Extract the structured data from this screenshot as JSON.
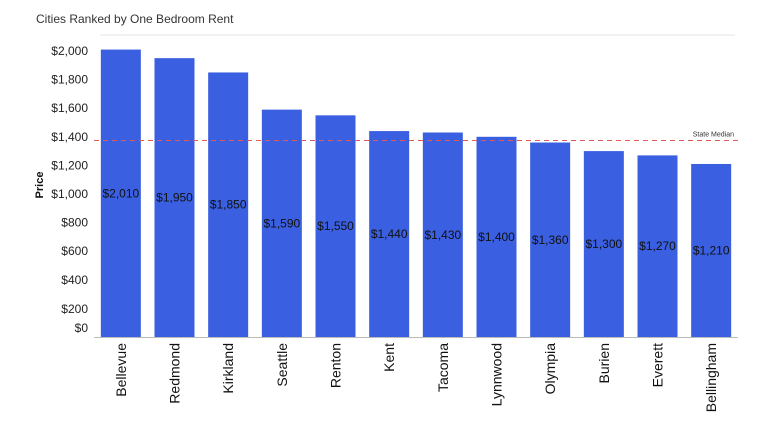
{
  "chart_data": {
    "type": "bar",
    "title": "Cities Ranked by One Bedroom Rent",
    "xlabel": "",
    "ylabel": "Price",
    "categories": [
      "Bellevue",
      "Redmond",
      "Kirkland",
      "Seattle",
      "Renton",
      "Kent",
      "Tacoma",
      "Lynnwood",
      "Olympia",
      "Burien",
      "Everett",
      "Bellingham"
    ],
    "values": [
      2010,
      1950,
      1850,
      1590,
      1550,
      1440,
      1430,
      1400,
      1360,
      1300,
      1270,
      1210
    ],
    "value_labels": [
      "$2,010",
      "$1,950",
      "$1,850",
      "$1,590",
      "$1,550",
      "$1,440",
      "$1,430",
      "$1,400",
      "$1,360",
      "$1,300",
      "$1,270",
      "$1,210"
    ],
    "y_ticks": [
      0,
      200,
      400,
      600,
      800,
      1000,
      1200,
      1400,
      1600,
      1800,
      2000
    ],
    "y_tick_labels": [
      "$0",
      "$200",
      "$400",
      "$600",
      "$800",
      "$1,000",
      "$1,200",
      "$1,400",
      "$1,600",
      "$1,800",
      "$2,000"
    ],
    "ylim": [
      0,
      2000
    ],
    "reference_line": {
      "label": "State Median",
      "value": 1360,
      "color": "#e05a5a"
    },
    "bar_color": "#3a5fe0",
    "grid": false,
    "legend": "none"
  }
}
